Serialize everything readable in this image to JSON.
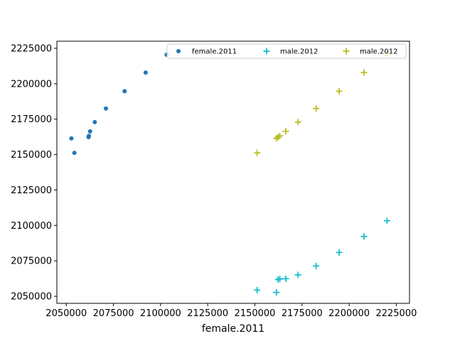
{
  "chart_data": {
    "type": "scatter",
    "title": "",
    "xlabel": "female.2011",
    "ylabel": "",
    "xlim": [
      2045000,
      2232000
    ],
    "ylim": [
      2045000,
      2230000
    ],
    "xticks": [
      2050000,
      2075000,
      2100000,
      2125000,
      2150000,
      2175000,
      2200000,
      2225000
    ],
    "yticks": [
      2050000,
      2075000,
      2100000,
      2125000,
      2150000,
      2175000,
      2200000,
      2225000
    ],
    "grid": false,
    "legend": {
      "placement": "top-right",
      "columns": 3
    },
    "series": [
      {
        "name": "female.2011",
        "marker": "dot",
        "color": "#1f77b4",
        "points": [
          [
            2052700,
            2161400
          ],
          [
            2054300,
            2151200
          ],
          [
            2061800,
            2162300
          ],
          [
            2062000,
            2163200
          ],
          [
            2062600,
            2166400
          ],
          [
            2065100,
            2172900
          ],
          [
            2071000,
            2182500
          ],
          [
            2080900,
            2194700
          ],
          [
            2092100,
            2207900
          ],
          [
            2103200,
            2220500
          ]
        ]
      },
      {
        "name": "male.2012",
        "marker": "plus",
        "color": "#17becf",
        "points": [
          [
            2151200,
            2054300
          ],
          [
            2161400,
            2052700
          ],
          [
            2162300,
            2061800
          ],
          [
            2163200,
            2062200
          ],
          [
            2166400,
            2062400
          ],
          [
            2172900,
            2065100
          ],
          [
            2182500,
            2071400
          ],
          [
            2194700,
            2080900
          ],
          [
            2207900,
            2092200
          ],
          [
            2220100,
            2103300
          ]
        ]
      },
      {
        "name": "male.2012",
        "marker": "plus",
        "color": "#bcbd22",
        "points": [
          [
            2151200,
            2151200
          ],
          [
            2161400,
            2161400
          ],
          [
            2162300,
            2162300
          ],
          [
            2163200,
            2163200
          ],
          [
            2166400,
            2166400
          ],
          [
            2172900,
            2172900
          ],
          [
            2182500,
            2182500
          ],
          [
            2194700,
            2194700
          ],
          [
            2207900,
            2207900
          ],
          [
            2220100,
            2220100
          ]
        ]
      }
    ]
  }
}
